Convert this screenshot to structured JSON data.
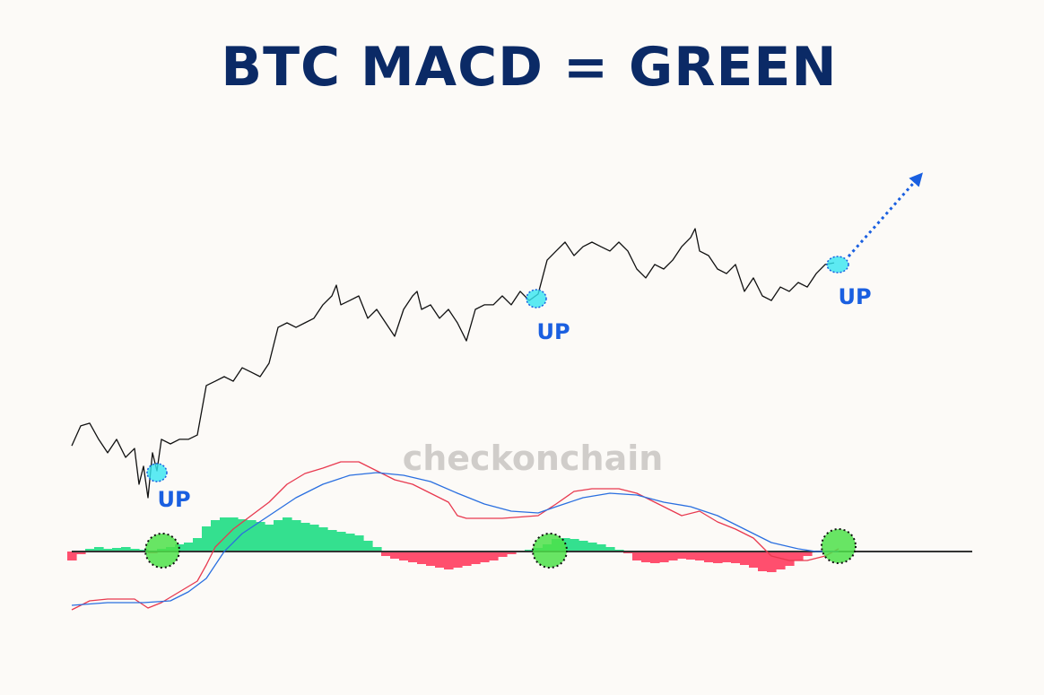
{
  "title": "BTC MACD = GREEN",
  "watermark": "checkonchain",
  "annotations": [
    "UP",
    "UP",
    "UP"
  ],
  "chart_data": [
    {
      "type": "line",
      "color": "#111111",
      "xlim": [
        0,
        100
      ],
      "ylim": [
        0,
        100
      ],
      "x": [
        0,
        1,
        2,
        3,
        4,
        5,
        6,
        7,
        7.5,
        8,
        8.5,
        9,
        9.5,
        10,
        11,
        12,
        13,
        14,
        15,
        16,
        17,
        18,
        19,
        20,
        21,
        22,
        23,
        24,
        25,
        26,
        27,
        28,
        29,
        29.5,
        30,
        31,
        32,
        33,
        34,
        35,
        36,
        37,
        38,
        38.5,
        39,
        40,
        41,
        42,
        43,
        44,
        45,
        46,
        47,
        48,
        49,
        50,
        51,
        52,
        53,
        54,
        55,
        56,
        57,
        58,
        59,
        60,
        61,
        62,
        63,
        64,
        65,
        66,
        67,
        68,
        69,
        69.5,
        70,
        71,
        72,
        73,
        74,
        75,
        76,
        77,
        78,
        79,
        80,
        81,
        82,
        83,
        84,
        85
      ],
      "values": [
        19.3,
        26.7,
        27.7,
        21.7,
        16.7,
        21.7,
        15,
        18.3,
        5,
        11.7,
        0,
        16.7,
        10,
        21.7,
        20,
        21.7,
        21.7,
        23.3,
        41.7,
        43.3,
        45,
        43.3,
        48.3,
        46.7,
        45,
        50,
        63.3,
        65,
        63.3,
        65,
        66.7,
        71.7,
        75,
        79,
        71.7,
        73.3,
        75,
        66.7,
        70,
        65,
        60,
        70,
        75,
        76.7,
        70,
        71.7,
        66.7,
        70,
        65,
        58.3,
        70,
        71.7,
        71.7,
        75,
        71.7,
        76.7,
        73.3,
        75.7,
        88.3,
        91.7,
        95,
        90,
        93.3,
        95,
        93.3,
        91.7,
        95,
        91.7,
        85,
        81.7,
        86.7,
        85,
        88.3,
        93.3,
        96.7,
        100,
        91.7,
        90,
        85,
        83.3,
        86.7,
        76.7,
        81.7,
        75,
        73.3,
        78.3,
        76.7,
        80,
        78.3,
        83.3,
        86.7,
        87.3
      ]
    },
    {
      "type": "line",
      "xlim": [
        0,
        100
      ],
      "ylim": [
        -80,
        100
      ],
      "series": [
        {
          "color": "#e8394f",
          "x": [
            0,
            2,
            4,
            7,
            8.5,
            10,
            12,
            14,
            15,
            16,
            18,
            20,
            22,
            24,
            26,
            28,
            30,
            32,
            34,
            36,
            38,
            40,
            42,
            43,
            44,
            48,
            52,
            54,
            56,
            58,
            61,
            63,
            65,
            68,
            70,
            72,
            74,
            76,
            78,
            80,
            82,
            84,
            85.5
          ],
          "values": [
            -65,
            -55,
            -53,
            -53,
            -63,
            -57,
            -45,
            -33,
            -15,
            5,
            25,
            40,
            55,
            75,
            87,
            93,
            100,
            100,
            90,
            80,
            75,
            65,
            55,
            40,
            37,
            37,
            40,
            53,
            67,
            70,
            70,
            65,
            55,
            40,
            45,
            33,
            25,
            15,
            -5,
            -10,
            -10,
            -5,
            3
          ]
        },
        {
          "color": "#2a6fe0",
          "x": [
            0,
            4,
            8,
            11,
            13,
            15,
            17,
            19,
            22,
            25,
            28,
            31,
            34,
            37,
            40,
            43,
            46,
            49,
            52,
            54,
            57,
            60,
            63,
            66,
            69,
            72,
            75,
            78,
            81,
            83,
            85.5
          ],
          "values": [
            -60,
            -57,
            -57,
            -55,
            -45,
            -30,
            0,
            20,
            40,
            60,
            75,
            85,
            88,
            85,
            78,
            65,
            53,
            45,
            43,
            50,
            60,
            65,
            63,
            55,
            50,
            40,
            25,
            10,
            3,
            0,
            0
          ]
        }
      ]
    },
    {
      "type": "bar",
      "xlim": [
        0,
        100
      ],
      "ylim": [
        -80,
        100
      ],
      "positive_color": "#34e08f",
      "negative_color": "#ff4f6e",
      "values": [
        -10,
        -3,
        3,
        5,
        3,
        4,
        5,
        3,
        2,
        -2,
        3,
        5,
        8,
        10,
        15,
        28,
        35,
        38,
        38,
        36,
        35,
        33,
        30,
        35,
        38,
        35,
        32,
        30,
        27,
        24,
        22,
        20,
        18,
        12,
        5,
        -5,
        -8,
        -10,
        -12,
        -14,
        -16,
        -18,
        -20,
        -18,
        -16,
        -14,
        -12,
        -10,
        -6,
        -3,
        0,
        2,
        4,
        8,
        14,
        15,
        14,
        12,
        10,
        8,
        5,
        2,
        -2,
        -10,
        -12,
        -13,
        -12,
        -10,
        -8,
        -9,
        -10,
        -12,
        -13,
        -12,
        -13,
        -15,
        -18,
        -22,
        -23,
        -20,
        -16,
        -10,
        -5,
        0,
        0,
        0
      ]
    }
  ]
}
